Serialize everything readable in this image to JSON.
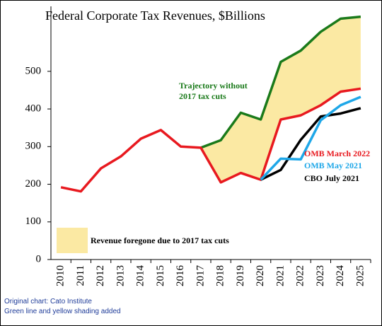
{
  "chart_data": {
    "type": "line",
    "title": "Federal Corporate Tax Revenues, $Billions",
    "categories": [
      "2010",
      "2011",
      "2012",
      "2013",
      "2014",
      "2015",
      "2016",
      "2017",
      "2018",
      "2019",
      "2020",
      "2021",
      "2022",
      "2023",
      "2024",
      "2025"
    ],
    "ylim": [
      0,
      650
    ],
    "yticks": [
      0,
      100,
      200,
      300,
      400,
      500
    ],
    "grid": false,
    "series": [
      {
        "name": "OMB March 2022",
        "color": "#e8191f",
        "values": [
          192,
          181,
          242,
          274,
          321,
          344,
          300,
          297,
          205,
          230,
          212,
          372,
          383,
          410,
          446,
          454
        ]
      },
      {
        "name": "Trajectory without 2017 tax cuts",
        "color": "#1a7a1a",
        "values": [
          null,
          null,
          null,
          null,
          null,
          null,
          null,
          297,
          317,
          390,
          372,
          525,
          555,
          605,
          640,
          645
        ]
      },
      {
        "name": "OMB May 2021",
        "color": "#1ea7e8",
        "values": [
          null,
          null,
          null,
          null,
          null,
          null,
          null,
          null,
          null,
          null,
          212,
          268,
          266,
          370,
          410,
          432
        ]
      },
      {
        "name": "CBO July 2021",
        "color": "#000000",
        "values": [
          null,
          null,
          null,
          null,
          null,
          null,
          null,
          null,
          null,
          null,
          212,
          238,
          318,
          380,
          388,
          402
        ]
      }
    ],
    "shading": {
      "label": "Revenue foregone due to 2017 tax cuts",
      "color": "#fbe9a3"
    },
    "notes": [
      "Original chart: Cato Institute",
      "Green line and yellow shading added"
    ]
  }
}
